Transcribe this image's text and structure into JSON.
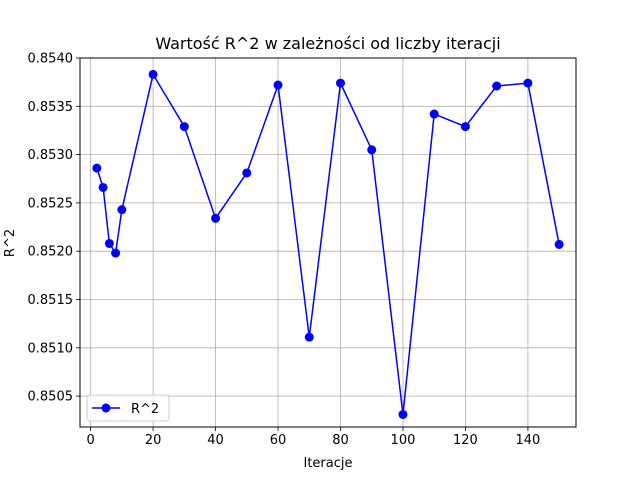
{
  "chart_data": {
    "type": "line",
    "title": "Wartość R^2 w zależności od liczby iteracji",
    "xlabel": "Iteracje",
    "ylabel": "R^2",
    "xlim": [
      -3.4,
      155.4
    ],
    "ylim": [
      0.85018,
      0.854
    ],
    "xticks": [
      0,
      20,
      40,
      60,
      80,
      100,
      120,
      140
    ],
    "yticks": [
      0.8505,
      0.851,
      0.8515,
      0.852,
      0.8525,
      0.853,
      0.8535,
      0.854
    ],
    "ytick_labels": [
      "0.8505",
      "0.8510",
      "0.8515",
      "0.8520",
      "0.8525",
      "0.8530",
      "0.8535",
      "0.8540"
    ],
    "grid": true,
    "legend_position": "lower-left",
    "series": [
      {
        "name": "R^2",
        "color": "#0000ff",
        "marker": "circle",
        "x": [
          2,
          4,
          6,
          8,
          10,
          20,
          30,
          40,
          50,
          60,
          70,
          80,
          90,
          100,
          110,
          120,
          130,
          140,
          150
        ],
        "y": [
          0.85286,
          0.85266,
          0.85208,
          0.85198,
          0.85243,
          0.85383,
          0.85329,
          0.85234,
          0.85281,
          0.85372,
          0.85111,
          0.85374,
          0.85305,
          0.85031,
          0.85342,
          0.85329,
          0.85371,
          0.85374,
          0.85207
        ]
      }
    ]
  }
}
